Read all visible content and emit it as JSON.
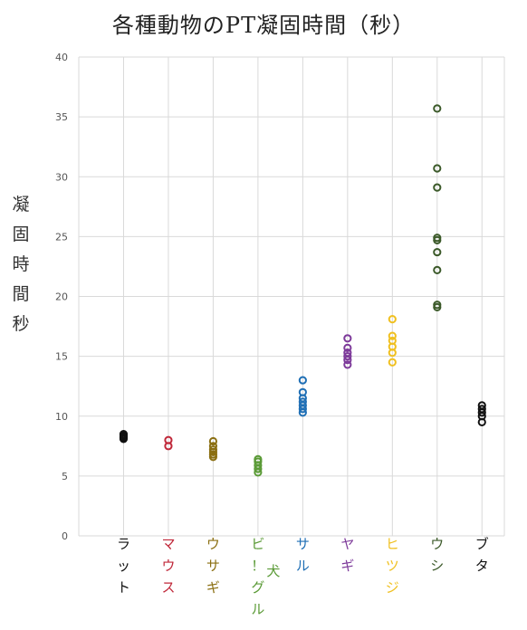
{
  "chart_data": {
    "type": "scatter",
    "title": "各種動物のPT凝固時間（秒）",
    "ylabel": "凝固時間秒",
    "xlabel": "",
    "ylim": [
      0,
      40
    ],
    "yticks": [
      0,
      5,
      10,
      15,
      20,
      25,
      30,
      35,
      40
    ],
    "grid": true,
    "categories": [
      {
        "label": "ラット",
        "note": "",
        "color": "#111111",
        "values": [
          8.1,
          8.2,
          8.3,
          8.4,
          8.5
        ]
      },
      {
        "label": "マウス",
        "note": "",
        "color": "#c0283a",
        "values": [
          7.5,
          8.0
        ]
      },
      {
        "label": "ウサギ",
        "note": "",
        "color": "#8b6f12",
        "values": [
          6.6,
          6.8,
          7.0,
          7.2,
          7.5,
          7.9
        ]
      },
      {
        "label": "ビ！グル",
        "note": "犬",
        "color": "#5a9a36",
        "values": [
          5.3,
          5.6,
          5.9,
          6.2,
          6.4
        ]
      },
      {
        "label": "サル",
        "note": "",
        "color": "#1f6fb5",
        "values": [
          10.3,
          10.6,
          10.9,
          11.2,
          11.5,
          12.0,
          13.0
        ]
      },
      {
        "label": "ヤギ",
        "note": "",
        "color": "#7d3a9a",
        "values": [
          14.3,
          14.7,
          15.0,
          15.3,
          15.7,
          16.5
        ]
      },
      {
        "label": "ヒツジ",
        "note": "",
        "color": "#f0c020",
        "values": [
          14.5,
          15.3,
          15.8,
          16.3,
          16.7,
          18.1
        ]
      },
      {
        "label": "ウシ",
        "note": "",
        "color": "#3c5a2a",
        "values": [
          19.1,
          19.3,
          22.2,
          23.7,
          24.7,
          24.9,
          29.1,
          30.7,
          35.7
        ]
      },
      {
        "label": "ブタ",
        "note": "",
        "color": "#111111",
        "values": [
          9.5,
          10.0,
          10.3,
          10.6,
          10.9
        ]
      }
    ]
  }
}
